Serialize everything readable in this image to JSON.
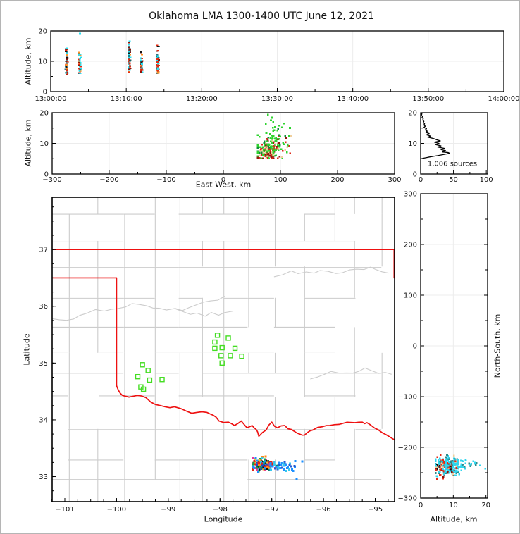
{
  "title": "Oklahoma LMA 1300-1400 UTC June 12, 2021",
  "colors": {
    "state_border": "#ee1111",
    "county_lines": "#cccccc",
    "gridline": "#ececec",
    "station_marker": "#44dd22",
    "histogram_line": "#000000"
  },
  "palettes": {
    "p1": [
      [
        "#29dff0",
        0.3
      ],
      [
        "#e42a10",
        0.22
      ],
      [
        "#8f1208",
        0.14
      ],
      [
        "#ff9225",
        0.14
      ],
      [
        "#39707a",
        0.1
      ],
      [
        "#141414",
        0.1
      ]
    ],
    "p2core": [
      [
        "#2ed32e",
        0.36
      ],
      [
        "#de2818",
        0.2
      ],
      [
        "#8f1a10",
        0.12
      ],
      [
        "#f0cf9d",
        0.22
      ],
      [
        "#0f8c3a",
        0.1
      ]
    ],
    "p2green": [
      [
        "#2ed32e",
        0.85
      ],
      [
        "#0f8c3a",
        0.15
      ]
    ],
    "mapCore": [
      [
        "#e42316",
        0.16
      ],
      [
        "#ff8c1a",
        0.12
      ],
      [
        "#efc23a",
        0.08
      ],
      [
        "#1e90ff",
        0.16
      ],
      [
        "#1f47c8",
        0.1
      ],
      [
        "#101010",
        0.08
      ],
      [
        "#e8359c",
        0.08
      ],
      [
        "#14a04c",
        0.08
      ],
      [
        "#127a6e",
        0.06
      ],
      [
        "#35c8ee",
        0.08
      ]
    ],
    "mapTrail": [
      [
        "#1e90ff",
        0.55
      ],
      [
        "#35c8ee",
        0.3
      ],
      [
        "#2458d0",
        0.15
      ]
    ],
    "prCore": [
      [
        "#30d5ee",
        0.4
      ],
      [
        "#e42a14",
        0.18
      ],
      [
        "#f0cf9d",
        0.12
      ],
      [
        "#8f1208",
        0.08
      ],
      [
        "#141414",
        0.08
      ],
      [
        "#2e8b8b",
        0.14
      ]
    ],
    "prCyan": [
      [
        "#30d5ee",
        0.8
      ],
      [
        "#2e8b8b",
        0.2
      ]
    ]
  },
  "chart_data": [
    {
      "id": "time_height",
      "type": "scatter",
      "ylabel": "Altitude, km",
      "ylim": [
        0,
        20
      ],
      "xlim_minutes_after_1300": [
        0,
        60
      ],
      "xticks": [
        {
          "v": 0,
          "label": "13:00:00"
        },
        {
          "v": 10,
          "label": "13:10:00"
        },
        {
          "v": 20,
          "label": "13:20:00"
        },
        {
          "v": 30,
          "label": "13:30:00"
        },
        {
          "v": 40,
          "label": "13:40:00"
        },
        {
          "v": 50,
          "label": "13:50:00"
        },
        {
          "v": 60,
          "label": "14:00:00"
        }
      ],
      "yticks": [
        {
          "v": 0,
          "label": "0"
        },
        {
          "v": 10,
          "label": "10"
        },
        {
          "v": 20,
          "label": "20"
        }
      ],
      "flash_streaks": [
        {
          "t_min": 2.1,
          "alt_min": 5.3,
          "alt_max": 14.4,
          "n": 48,
          "palette": "p1"
        },
        {
          "t_min": 3.85,
          "alt_min": 5.4,
          "alt_max": 13.1,
          "n": 40,
          "palette": "p1"
        },
        {
          "t_min": 10.4,
          "alt_min": 5.6,
          "alt_max": 16.8,
          "n": 60,
          "palette": "p1"
        },
        {
          "t_min": 12.0,
          "alt_min": 5.6,
          "alt_max": 13.2,
          "n": 42,
          "palette": "p1"
        },
        {
          "t_min": 14.2,
          "alt_min": 5.3,
          "alt_max": 15.4,
          "n": 55,
          "palette": "p1"
        }
      ],
      "extra_points": [
        [
          3.85,
          19.2,
          "#29dff0"
        ],
        [
          10.45,
          16.6,
          "#29dff0"
        ]
      ]
    },
    {
      "id": "ew_height",
      "type": "scatter",
      "xlabel": "East-West, km",
      "ylabel": "Altitude, km",
      "xlim": [
        -300,
        300
      ],
      "ylim": [
        0,
        20
      ],
      "xticks": [
        {
          "v": -300,
          "label": "−300"
        },
        {
          "v": -200,
          "label": "−200"
        },
        {
          "v": -100,
          "label": "−100"
        },
        {
          "v": 0,
          "label": "0"
        },
        {
          "v": 100,
          "label": "100"
        },
        {
          "v": 200,
          "label": "200"
        },
        {
          "v": 300,
          "label": "300"
        }
      ],
      "yticks": [
        {
          "v": 0,
          "label": "0"
        },
        {
          "v": 10,
          "label": "10"
        },
        {
          "v": 20,
          "label": "20"
        }
      ],
      "clusters": [
        {
          "cx": 76,
          "cy": 7.4,
          "sx": 8,
          "sy": 1.5,
          "n": 150,
          "palette": "p2core",
          "clamp": [
            60,
            108,
            5.1,
            11.5
          ]
        },
        {
          "cx": 92,
          "cy": 8.6,
          "sx": 13,
          "sy": 1.9,
          "n": 62,
          "palette": "p2core",
          "clamp": [
            60,
            127,
            5.1,
            12.5
          ]
        },
        {
          "cx": 88,
          "cy": 11.8,
          "sx": 14,
          "sy": 1.9,
          "n": 34,
          "palette": "p2green",
          "clamp": [
            60,
            125,
            6,
            19.4
          ]
        },
        {
          "cx": 80,
          "cy": 16.0,
          "sx": 7,
          "sy": 1.6,
          "n": 7,
          "palette": "p2green",
          "clamp": [
            64,
            112,
            13,
            19.4
          ]
        }
      ],
      "extra_points": [
        [
          78,
          19.3,
          "#2ed32e"
        ],
        [
          115,
          12.4,
          "#2ed32e"
        ]
      ]
    },
    {
      "id": "alt_histogram",
      "type": "line",
      "annotation": "1,006 sources",
      "xlim": [
        0,
        102
      ],
      "ylim": [
        0,
        20
      ],
      "xticks": [
        {
          "v": 0,
          "label": "0"
        },
        {
          "v": 50,
          "label": "50"
        },
        {
          "v": 100,
          "label": "100"
        }
      ],
      "yticks": [
        {
          "v": 0,
          "label": "0"
        },
        {
          "v": 10,
          "label": "10"
        },
        {
          "v": 20,
          "label": "20"
        }
      ],
      "profile_alt_count": [
        [
          20,
          0
        ],
        [
          19.6,
          2
        ],
        [
          19.2,
          1
        ],
        [
          18.8,
          3
        ],
        [
          18.4,
          2
        ],
        [
          18,
          4
        ],
        [
          17.6,
          3
        ],
        [
          17.2,
          5
        ],
        [
          16.8,
          4
        ],
        [
          16.4,
          6
        ],
        [
          16,
          5
        ],
        [
          15.6,
          7
        ],
        [
          15.2,
          5
        ],
        [
          14.8,
          9
        ],
        [
          14.4,
          7
        ],
        [
          14,
          10
        ],
        [
          13.6,
          8
        ],
        [
          13.2,
          13
        ],
        [
          12.8,
          9
        ],
        [
          12.4,
          15
        ],
        [
          12,
          11
        ],
        [
          11.6,
          19
        ],
        [
          11.2,
          24
        ],
        [
          10.8,
          30
        ],
        [
          10.4,
          21
        ],
        [
          10,
          28
        ],
        [
          9.6,
          23
        ],
        [
          9.2,
          31
        ],
        [
          8.8,
          26
        ],
        [
          8.4,
          36
        ],
        [
          8,
          31
        ],
        [
          7.6,
          38
        ],
        [
          7.2,
          33
        ],
        [
          7,
          42
        ],
        [
          6.8,
          44
        ],
        [
          6.6,
          41
        ],
        [
          6.4,
          36
        ],
        [
          6.2,
          31
        ],
        [
          6,
          26
        ],
        [
          5.8,
          20
        ],
        [
          5.5,
          12
        ],
        [
          5.2,
          5
        ],
        [
          5,
          1
        ],
        [
          4.9,
          0
        ]
      ]
    },
    {
      "id": "map",
      "type": "scatter",
      "xlabel": "Longitude",
      "ylabel": "Latitude",
      "xlim": [
        -101.245,
        -94.626
      ],
      "ylim": [
        32.56,
        37.92
      ],
      "xticks": [
        {
          "v": -101,
          "label": "−101"
        },
        {
          "v": -100,
          "label": "−100"
        },
        {
          "v": -99,
          "label": "−99"
        },
        {
          "v": -98,
          "label": "−98"
        },
        {
          "v": -97,
          "label": "−97"
        },
        {
          "v": -96,
          "label": "−96"
        },
        {
          "v": -95,
          "label": "−95"
        }
      ],
      "yticks": [
        {
          "v": 33,
          "label": "33"
        },
        {
          "v": 34,
          "label": "34"
        },
        {
          "v": 35,
          "label": "35"
        },
        {
          "v": 36,
          "label": "36"
        },
        {
          "v": 37,
          "label": "37"
        }
      ],
      "stations_lonlat": [
        [
          -99.5,
          34.97
        ],
        [
          -99.39,
          34.87
        ],
        [
          -99.59,
          34.76
        ],
        [
          -99.36,
          34.7
        ],
        [
          -99.53,
          34.58
        ],
        [
          -99.48,
          34.54
        ],
        [
          -99.12,
          34.71
        ],
        [
          -98.05,
          35.49
        ],
        [
          -97.84,
          35.44
        ],
        [
          -98.1,
          35.37
        ],
        [
          -98.1,
          35.26
        ],
        [
          -97.96,
          35.27
        ],
        [
          -97.71,
          35.26
        ],
        [
          -97.98,
          35.13
        ],
        [
          -97.8,
          35.13
        ],
        [
          -97.96,
          35.0
        ],
        [
          -97.58,
          35.12
        ]
      ],
      "storm_clusters": [
        {
          "cx": -97.17,
          "cy": 33.215,
          "sx": 0.1,
          "sy": 0.05,
          "n": 215,
          "palette": "mapCore",
          "clamp": [
            -97.36,
            -96.85,
            33.05,
            33.37
          ]
        },
        {
          "cx": -96.85,
          "cy": 33.19,
          "sx": 0.15,
          "sy": 0.035,
          "n": 50,
          "palette": "mapTrail",
          "clamp": [
            -97.02,
            -96.45,
            33.07,
            33.3
          ]
        }
      ],
      "extra_points": [
        [
          -96.41,
          33.27,
          "#1e90ff"
        ],
        [
          -96.52,
          32.96,
          "#1e90ff"
        ],
        [
          -96.72,
          33.1,
          "#35c8ee"
        ]
      ],
      "state_border": {
        "kansas_line": [
          [
            -101.245,
            37.0
          ],
          [
            -94.626,
            37.0
          ]
        ],
        "panhandle_line": [
          [
            -101.245,
            36.5
          ],
          [
            -100.0,
            36.5
          ]
        ],
        "west_line": [
          [
            -100.0,
            36.5
          ],
          [
            -100.0,
            34.6
          ]
        ],
        "east_line": [
          [
            -94.635,
            37.0
          ],
          [
            -94.635,
            36.5
          ]
        ],
        "red_river": [
          [
            -100.0,
            34.6
          ],
          [
            -99.93,
            34.47
          ],
          [
            -99.85,
            34.42
          ],
          [
            -99.76,
            34.4
          ],
          [
            -99.6,
            34.43
          ],
          [
            -99.43,
            34.39
          ],
          [
            -99.25,
            34.27
          ],
          [
            -99.06,
            34.23
          ],
          [
            -98.88,
            34.23
          ],
          [
            -98.64,
            34.15
          ],
          [
            -98.45,
            34.13
          ],
          [
            -98.25,
            34.13
          ],
          [
            -98.13,
            34.08
          ],
          [
            -98.02,
            33.98
          ],
          [
            -97.84,
            33.96
          ],
          [
            -97.72,
            33.9
          ],
          [
            -97.59,
            33.98
          ],
          [
            -97.48,
            33.86
          ],
          [
            -97.38,
            33.9
          ],
          [
            -97.3,
            33.83
          ],
          [
            -97.25,
            33.71
          ],
          [
            -97.11,
            33.82
          ],
          [
            -97.0,
            33.96
          ],
          [
            -96.89,
            33.86
          ],
          [
            -96.75,
            33.9
          ],
          [
            -96.62,
            33.83
          ],
          [
            -96.41,
            33.73
          ],
          [
            -96.32,
            33.77
          ],
          [
            -96.21,
            33.82
          ],
          [
            -96.02,
            33.88
          ],
          [
            -95.88,
            33.9
          ],
          [
            -95.7,
            33.92
          ],
          [
            -95.39,
            33.95
          ],
          [
            -95.25,
            33.96
          ],
          [
            -95.16,
            33.95
          ],
          [
            -95.02,
            33.86
          ],
          [
            -94.86,
            33.77
          ],
          [
            -94.72,
            33.7
          ],
          [
            -94.61,
            33.64
          ]
        ]
      }
    },
    {
      "id": "ns_height",
      "type": "scatter",
      "xlabel": "Altitude, km",
      "ylabel": "North-South, km",
      "xlim": [
        0,
        20.5
      ],
      "ylim": [
        -300,
        300
      ],
      "xticks": [
        {
          "v": 0,
          "label": "0"
        },
        {
          "v": 10,
          "label": "10"
        },
        {
          "v": 20,
          "label": "20"
        }
      ],
      "yticks": [
        {
          "v": 300,
          "label": "300"
        },
        {
          "v": 200,
          "label": "200"
        },
        {
          "v": 100,
          "label": "100"
        },
        {
          "v": 0,
          "label": "0"
        },
        {
          "v": -100,
          "label": "−100"
        },
        {
          "v": -200,
          "label": "−200"
        },
        {
          "v": -300,
          "label": "−300"
        }
      ],
      "clusters": [
        {
          "cx": 7.8,
          "cy": -238,
          "sx": 1.8,
          "sy": 9,
          "n": 210,
          "palette": "prCore",
          "clamp": [
            4.6,
            13.2,
            -262,
            -215
          ]
        },
        {
          "cx": 11.0,
          "cy": -234,
          "sx": 2.2,
          "sy": 7,
          "n": 55,
          "palette": "prCyan",
          "clamp": [
            5,
            14.5,
            -258,
            -216
          ]
        },
        {
          "cx": 14.5,
          "cy": -233,
          "sx": 1.6,
          "sy": 3,
          "n": 12,
          "palette": "prCyan",
          "clamp": [
            12.5,
            17.2,
            -242,
            -226
          ]
        }
      ],
      "extra_points": [
        [
          19.8,
          -242,
          "#30d5ee"
        ],
        [
          18.2,
          -236,
          "#30d5ee"
        ]
      ]
    }
  ]
}
